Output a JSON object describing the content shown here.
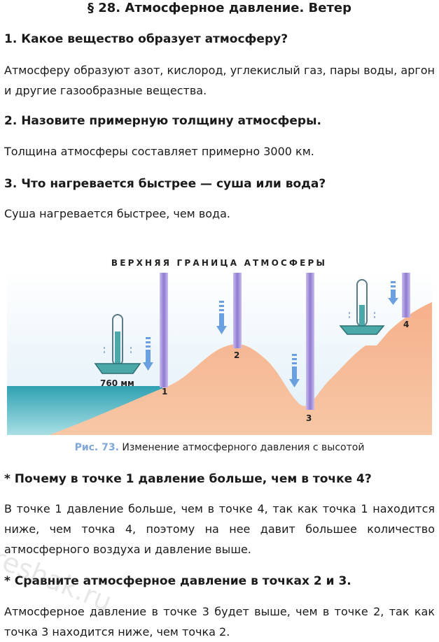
{
  "title": "§ 28. Атмосферное давление. Ветер",
  "qa": [
    {
      "q": "1. Какое вещество образует атмосферу?",
      "a": "Атмосферу образуют азот, кислород, углекислый газ, пары воды, аргон и другие газообразные вещества."
    },
    {
      "q": "2. Назовите примерную толщину атмосферы.",
      "a": "Толщина атмосферы составляет примерно 3000 км."
    },
    {
      "q": "3. Что нагревается быстрее — суша или вода?",
      "a": "Суша нагревается быстрее, чем вода."
    },
    {
      "q": "* Почему в точке 1 давление больше, чем в точке 4?",
      "a": "В точке 1 давление больше, чем в точке 4, так как точка 1 находится ниже, чем точка 4, поэтому на нее давит большее количество атмосферного воздуха и давление выше."
    },
    {
      "q": "* Сравните атмосферное давление в точках 2 и 3.",
      "a": "Атмосферное давление в точке 3 будет выше, чем в точке 2, так как точка 3 находится ниже, чем точка 2."
    }
  ],
  "figure": {
    "top_label": "ВЕРХНЯЯ ГРАНИЦА АТМОСФЕРЫ",
    "pressure_label": "760 мм",
    "points": [
      "1",
      "2",
      "3",
      "4"
    ],
    "caption_num": "Рис. 73.",
    "caption_text": "Изменение атмосферного давления с высотой"
  },
  "watermark": "reshak.ru",
  "colors": {
    "land": "#f3a57f",
    "water": "#3fa9b6",
    "column": "#9b86d6",
    "arrow": "#6a9fe0",
    "caption_num": "#7fa8d8"
  }
}
